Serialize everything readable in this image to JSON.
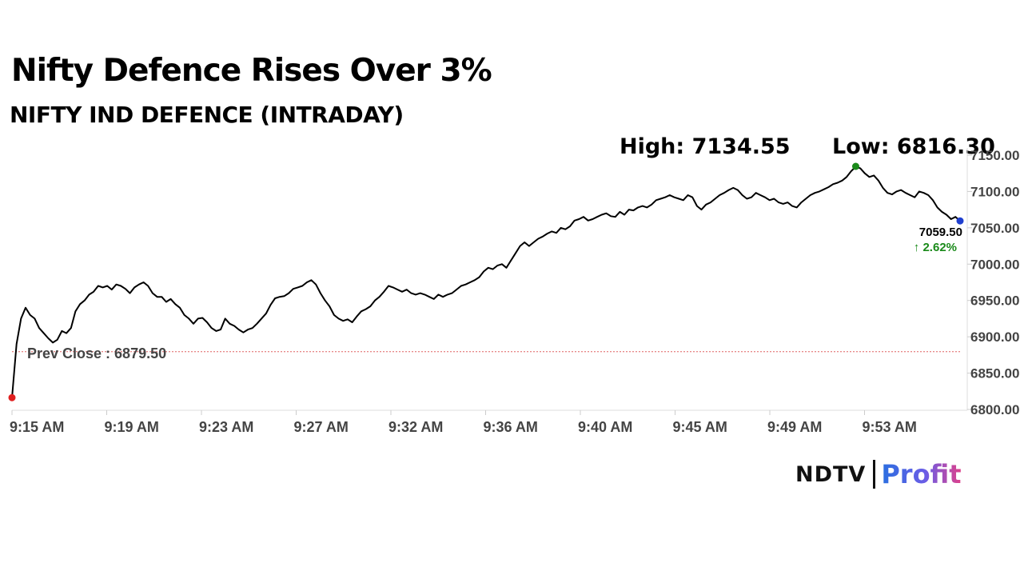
{
  "header": {
    "title": "Nifty Defence Rises Over 3%",
    "subtitle": "NIFTY IND DEFENCE (INTRADAY)",
    "high_label": "High: 7134.55",
    "low_label": "Low: 6816.30"
  },
  "brand": {
    "ndtv": "NDTV",
    "profit": "Profit"
  },
  "chart_data": {
    "type": "line",
    "title": "NIFTY IND DEFENCE (INTRADAY)",
    "x_tick_labels": [
      "9:15 AM",
      "9:19 AM",
      "9:23 AM",
      "9:27 AM",
      "9:32 AM",
      "9:36 AM",
      "9:40 AM",
      "9:45 AM",
      "9:49 AM",
      "9:53 AM"
    ],
    "y_tick_labels": [
      "6800.00",
      "6850.00",
      "6900.00",
      "6950.00",
      "7000.00",
      "7050.00",
      "7100.00",
      "7150.00"
    ],
    "ylim": [
      6800,
      7150
    ],
    "prev_close": {
      "label": "Prev Close : 6879.50",
      "value": 6879.5
    },
    "last": {
      "label": "7059.50",
      "value": 7059.5,
      "change_label": "2.62%",
      "change_arrow": "↑"
    },
    "start_value": 6816.3,
    "high_value": 7134.55,
    "colors": {
      "line": "#000000",
      "start_dot": "#e02020",
      "high_dot": "#1a8a1a",
      "end_dot": "#1f3fcf",
      "prev_close_line": "#e06060",
      "change_text": "#1a8a1a"
    },
    "series": [
      {
        "values": [
          6816,
          6890,
          6925,
          6940,
          6930,
          6925,
          6912,
          6905,
          6898,
          6892,
          6896,
          6908,
          6905,
          6912,
          6935,
          6945,
          6950,
          6958,
          6962,
          6970,
          6968,
          6970,
          6965,
          6972,
          6970,
          6966,
          6960,
          6968,
          6972,
          6975,
          6970,
          6960,
          6955,
          6955,
          6948,
          6952,
          6945,
          6940,
          6930,
          6925,
          6918,
          6925,
          6926,
          6920,
          6912,
          6908,
          6910,
          6925,
          6918,
          6915,
          6910,
          6906,
          6910,
          6912,
          6918,
          6925,
          6932,
          6944,
          6953,
          6955,
          6956,
          6960,
          6966,
          6968,
          6970,
          6975,
          6978,
          6972,
          6960,
          6950,
          6942,
          6930,
          6925,
          6922,
          6924,
          6920,
          6928,
          6935,
          6938,
          6942,
          6950,
          6955,
          6962,
          6970,
          6968,
          6965,
          6962,
          6965,
          6960,
          6958,
          6960,
          6958,
          6955,
          6952,
          6958,
          6955,
          6958,
          6960,
          6965,
          6970,
          6972,
          6975,
          6978,
          6982,
          6990,
          6995,
          6993,
          6998,
          7000,
          6995,
          7005,
          7015,
          7025,
          7030,
          7025,
          7030,
          7035,
          7038,
          7042,
          7045,
          7043,
          7050,
          7048,
          7052,
          7060,
          7062,
          7065,
          7060,
          7062,
          7065,
          7068,
          7070,
          7066,
          7065,
          7072,
          7068,
          7075,
          7074,
          7078,
          7080,
          7078,
          7082,
          7088,
          7090,
          7092,
          7095,
          7092,
          7090,
          7088,
          7095,
          7092,
          7080,
          7075,
          7082,
          7085,
          7090,
          7095,
          7098,
          7102,
          7105,
          7102,
          7095,
          7090,
          7092,
          7098,
          7095,
          7092,
          7088,
          7090,
          7085,
          7083,
          7085,
          7080,
          7078,
          7085,
          7090,
          7095,
          7098,
          7100,
          7103,
          7106,
          7110,
          7112,
          7115,
          7120,
          7128,
          7134,
          7132,
          7125,
          7120,
          7122,
          7115,
          7105,
          7098,
          7096,
          7100,
          7102,
          7098,
          7095,
          7092,
          7100,
          7098,
          7095,
          7088,
          7078,
          7072,
          7068,
          7062,
          7065,
          7059.5
        ]
      }
    ]
  }
}
